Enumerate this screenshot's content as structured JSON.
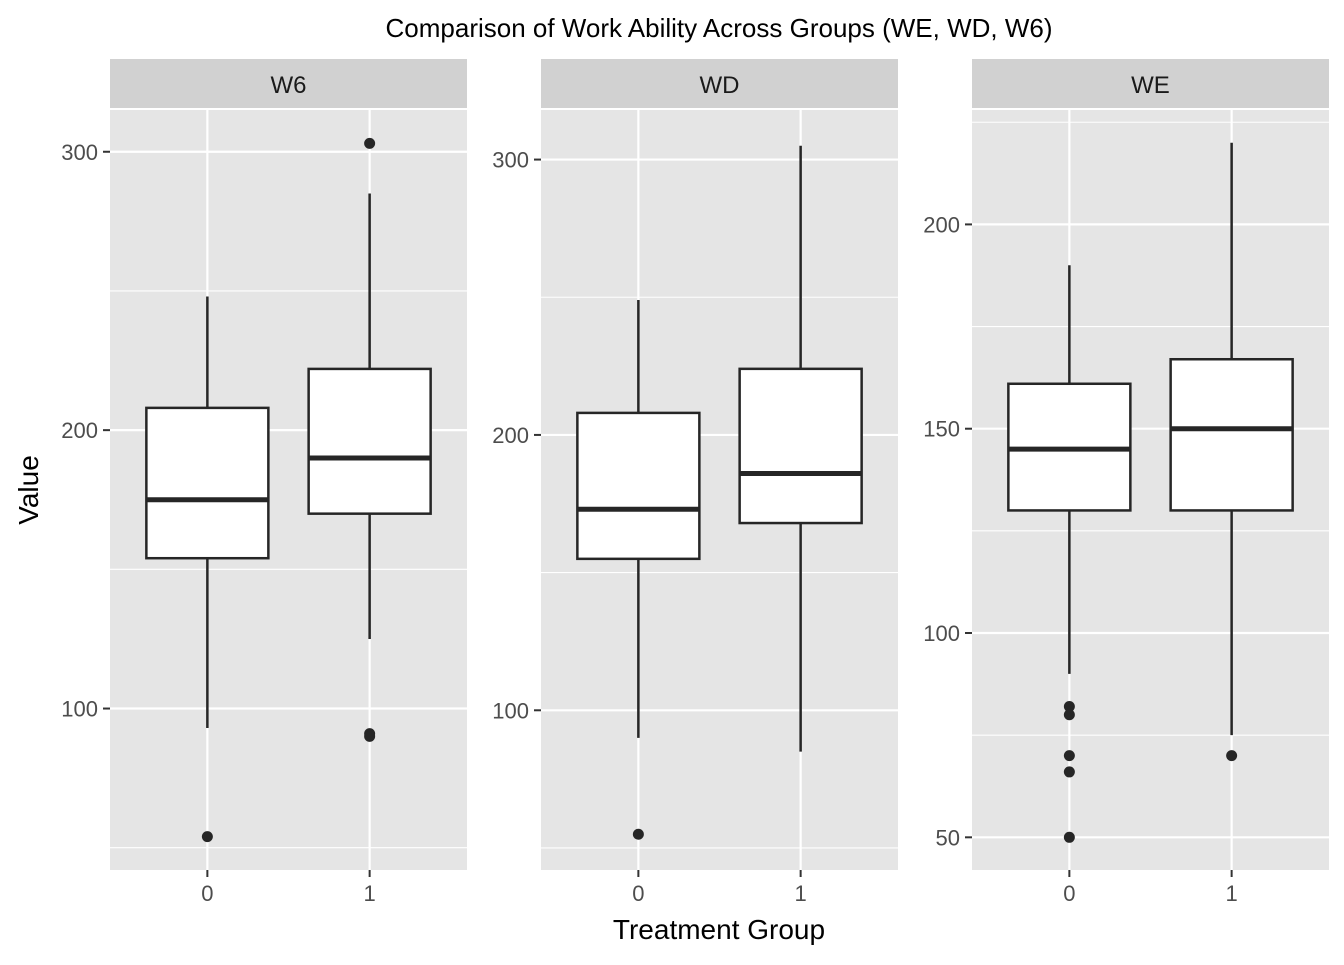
{
  "chart_data": {
    "type": "boxplot",
    "title": "Comparison of Work Ability Across Groups (WE, WD, W6)",
    "xlabel": "Treatment Group",
    "ylabel": "Value",
    "categories": [
      "0",
      "1"
    ],
    "colors": {
      "panel_background": "#e5e5e5",
      "strip_background": "#d1d1d1",
      "grid": "#ffffff",
      "box_fill": "#ffffff",
      "box_line": "#262626"
    },
    "panels": [
      {
        "name": "W6",
        "ylim": [
          42,
          315
        ],
        "yticks": [
          100,
          200,
          300
        ],
        "yminor": [
          50,
          150,
          250
        ],
        "boxes": [
          {
            "category": "0",
            "whisker_low": 93,
            "q1": 154,
            "median": 175,
            "q3": 208,
            "whisker_high": 248,
            "outliers": [
              54
            ]
          },
          {
            "category": "1",
            "whisker_low": 125,
            "q1": 170,
            "median": 190,
            "q3": 222,
            "whisker_high": 285,
            "outliers": [
              91,
              90,
              303
            ]
          }
        ]
      },
      {
        "name": "WD",
        "ylim": [
          42,
          318
        ],
        "yticks": [
          100,
          200,
          300
        ],
        "yminor": [
          50,
          150,
          250
        ],
        "boxes": [
          {
            "category": "0",
            "whisker_low": 90,
            "q1": 155,
            "median": 173,
            "q3": 208,
            "whisker_high": 249,
            "outliers": [
              55
            ]
          },
          {
            "category": "1",
            "whisker_low": 85,
            "q1": 168,
            "median": 186,
            "q3": 224,
            "whisker_high": 305,
            "outliers": []
          }
        ]
      },
      {
        "name": "WE",
        "ylim": [
          42,
          228
        ],
        "yticks": [
          50,
          100,
          150,
          200
        ],
        "yminor": [
          75,
          125,
          175,
          225
        ],
        "boxes": [
          {
            "category": "0",
            "whisker_low": 90,
            "q1": 130,
            "median": 145,
            "q3": 161,
            "whisker_high": 190,
            "outliers": [
              82,
              80,
              70,
              66,
              50
            ]
          },
          {
            "category": "1",
            "whisker_low": 75,
            "q1": 130,
            "median": 150,
            "q3": 167,
            "whisker_high": 220,
            "outliers": [
              70
            ]
          }
        ]
      }
    ]
  }
}
